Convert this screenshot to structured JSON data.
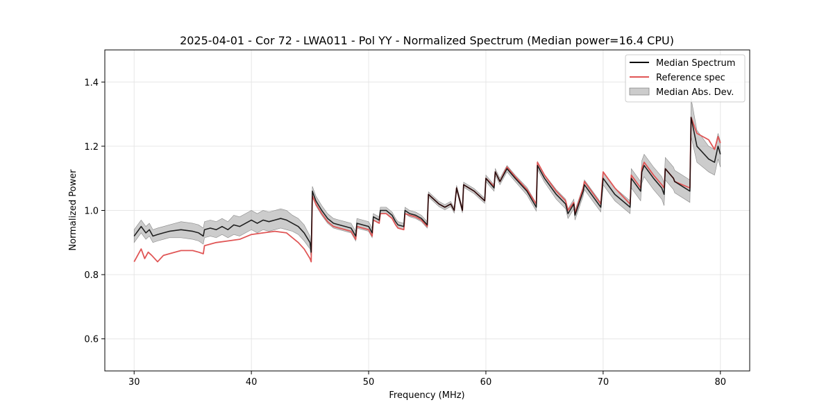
{
  "chart_data": {
    "type": "line",
    "title": "2025-04-01 - Cor 72 - LWA011 - Pol YY - Normalized Spectrum (Median power=16.4 CPU)",
    "xlabel": "Frequency (MHz)",
    "ylabel": "Normalized Power",
    "xlim": [
      27.5,
      82.5
    ],
    "ylim": [
      0.5,
      1.5
    ],
    "xticks": [
      30,
      40,
      50,
      60,
      70,
      80
    ],
    "yticks": [
      0.6,
      0.8,
      1.0,
      1.2,
      1.4
    ],
    "xtick_labels": [
      "30",
      "40",
      "50",
      "60",
      "70",
      "80"
    ],
    "ytick_labels": [
      "0.6",
      "0.8",
      "1.0",
      "1.2",
      "1.4"
    ],
    "grid": true,
    "legend_position": "top-right",
    "colors": {
      "median": "#000000",
      "reference": "#e05555",
      "mad_fill": "#999999"
    },
    "legend": [
      {
        "name": "Median Spectrum",
        "kind": "line",
        "color": "#000000"
      },
      {
        "name": "Reference spec",
        "kind": "line",
        "color": "#e05555"
      },
      {
        "name": "Median Abs. Dev.",
        "kind": "band",
        "color": "#999999"
      }
    ],
    "series": [
      {
        "name": "Median Spectrum",
        "x": [
          30.0,
          30.3,
          30.6,
          31.0,
          31.3,
          31.6,
          32.0,
          32.5,
          33.0,
          34.0,
          35.0,
          35.5,
          35.9,
          36.0,
          36.5,
          37.0,
          37.5,
          38.0,
          38.5,
          39.0,
          39.5,
          40.0,
          40.5,
          41.0,
          41.5,
          42.0,
          42.5,
          43.0,
          43.5,
          44.0,
          44.5,
          45.0,
          45.1,
          45.2,
          45.5,
          46.0,
          46.5,
          47.0,
          47.5,
          48.0,
          48.5,
          48.9,
          49.0,
          49.5,
          50.0,
          50.3,
          50.4,
          50.9,
          51.0,
          51.5,
          52.0,
          52.3,
          52.5,
          53.0,
          53.1,
          53.5,
          54.0,
          54.5,
          55.0,
          55.1,
          56.0,
          56.5,
          57.0,
          57.3,
          57.5,
          58.0,
          58.1,
          59.0,
          59.9,
          60.0,
          60.7,
          60.8,
          61.2,
          61.8,
          62.5,
          63.5,
          64.3,
          64.4,
          65.0,
          66.0,
          66.8,
          67.0,
          67.5,
          67.6,
          68.3,
          68.4,
          69.8,
          70.0,
          71.0,
          72.3,
          72.4,
          73.2,
          73.3,
          73.5,
          74.3,
          75.0,
          75.2,
          75.3,
          76.0,
          76.1,
          77.4,
          77.5,
          78.0,
          79.0,
          79.5,
          79.8,
          80.0
        ],
        "values": [
          0.92,
          0.935,
          0.95,
          0.93,
          0.94,
          0.92,
          0.925,
          0.93,
          0.935,
          0.94,
          0.935,
          0.93,
          0.92,
          0.94,
          0.945,
          0.94,
          0.95,
          0.94,
          0.955,
          0.95,
          0.96,
          0.97,
          0.96,
          0.97,
          0.965,
          0.97,
          0.975,
          0.97,
          0.96,
          0.95,
          0.93,
          0.9,
          0.87,
          1.06,
          1.03,
          1.0,
          0.975,
          0.96,
          0.955,
          0.95,
          0.945,
          0.92,
          0.96,
          0.955,
          0.95,
          0.93,
          0.98,
          0.97,
          1.0,
          1.0,
          0.985,
          0.965,
          0.955,
          0.95,
          1.0,
          0.99,
          0.985,
          0.975,
          0.955,
          1.05,
          1.02,
          1.01,
          1.02,
          1.0,
          1.07,
          1.0,
          1.08,
          1.06,
          1.03,
          1.1,
          1.07,
          1.12,
          1.09,
          1.13,
          1.1,
          1.06,
          1.01,
          1.14,
          1.1,
          1.05,
          1.02,
          0.99,
          1.02,
          0.985,
          1.06,
          1.08,
          1.01,
          1.1,
          1.05,
          1.01,
          1.1,
          1.06,
          1.12,
          1.14,
          1.1,
          1.07,
          1.05,
          1.13,
          1.1,
          1.09,
          1.06,
          1.29,
          1.2,
          1.16,
          1.15,
          1.2,
          1.175
        ],
        "mad": [
          0.02,
          0.02,
          0.02,
          0.02,
          0.02,
          0.02,
          0.02,
          0.02,
          0.02,
          0.025,
          0.025,
          0.025,
          0.025,
          0.025,
          0.025,
          0.025,
          0.025,
          0.025,
          0.03,
          0.03,
          0.03,
          0.03,
          0.03,
          0.03,
          0.03,
          0.03,
          0.03,
          0.03,
          0.025,
          0.025,
          0.025,
          0.02,
          0.02,
          0.015,
          0.015,
          0.015,
          0.015,
          0.015,
          0.015,
          0.015,
          0.015,
          0.015,
          0.015,
          0.015,
          0.015,
          0.015,
          0.01,
          0.01,
          0.01,
          0.01,
          0.01,
          0.01,
          0.01,
          0.01,
          0.01,
          0.01,
          0.01,
          0.01,
          0.01,
          0.008,
          0.008,
          0.008,
          0.008,
          0.008,
          0.008,
          0.008,
          0.008,
          0.008,
          0.008,
          0.01,
          0.01,
          0.01,
          0.01,
          0.01,
          0.01,
          0.012,
          0.012,
          0.012,
          0.012,
          0.015,
          0.015,
          0.015,
          0.015,
          0.015,
          0.015,
          0.015,
          0.015,
          0.02,
          0.02,
          0.02,
          0.03,
          0.03,
          0.035,
          0.035,
          0.035,
          0.035,
          0.035,
          0.035,
          0.035,
          0.035,
          0.035,
          0.06,
          0.05,
          0.04,
          0.04,
          0.04,
          0.04
        ]
      },
      {
        "name": "Reference spec",
        "x": [
          30.0,
          30.3,
          30.6,
          30.9,
          31.2,
          31.5,
          32.0,
          32.5,
          33.0,
          34.0,
          35.0,
          35.5,
          35.9,
          36.0,
          37.0,
          38.0,
          39.0,
          40.0,
          41.0,
          42.0,
          43.0,
          44.0,
          44.5,
          45.0,
          45.1,
          45.2,
          45.5,
          46.0,
          46.5,
          47.0,
          47.5,
          48.0,
          48.5,
          48.9,
          49.0,
          49.5,
          50.0,
          50.3,
          50.4,
          50.9,
          51.0,
          51.5,
          52.0,
          52.3,
          52.5,
          53.0,
          53.1,
          53.5,
          54.0,
          54.5,
          55.0,
          55.1,
          56.0,
          56.5,
          57.0,
          57.3,
          57.5,
          58.0,
          58.1,
          59.0,
          59.9,
          60.0,
          60.7,
          60.8,
          61.2,
          61.8,
          62.5,
          63.5,
          64.3,
          64.4,
          65.0,
          66.0,
          66.8,
          67.0,
          67.5,
          67.6,
          68.3,
          68.4,
          69.8,
          70.0,
          71.0,
          72.3,
          72.4,
          73.2,
          73.3,
          73.5,
          74.3,
          75.0,
          75.2,
          75.3,
          76.0,
          76.1,
          77.4,
          77.5,
          78.0,
          79.0,
          79.5,
          79.8,
          80.0
        ],
        "values": [
          0.84,
          0.86,
          0.88,
          0.85,
          0.87,
          0.86,
          0.84,
          0.86,
          0.865,
          0.875,
          0.875,
          0.87,
          0.865,
          0.89,
          0.9,
          0.905,
          0.91,
          0.925,
          0.93,
          0.935,
          0.93,
          0.9,
          0.88,
          0.85,
          0.84,
          1.045,
          1.02,
          0.99,
          0.965,
          0.95,
          0.945,
          0.94,
          0.935,
          0.91,
          0.95,
          0.945,
          0.94,
          0.92,
          0.97,
          0.96,
          0.99,
          0.99,
          0.975,
          0.955,
          0.945,
          0.94,
          0.99,
          0.985,
          0.98,
          0.97,
          0.95,
          1.05,
          1.02,
          1.01,
          1.02,
          1.0,
          1.07,
          1.0,
          1.08,
          1.06,
          1.03,
          1.1,
          1.075,
          1.12,
          1.09,
          1.135,
          1.105,
          1.065,
          1.02,
          1.15,
          1.11,
          1.06,
          1.03,
          1.0,
          1.025,
          0.99,
          1.07,
          1.09,
          1.02,
          1.12,
          1.07,
          1.02,
          1.11,
          1.07,
          1.13,
          1.15,
          1.11,
          1.08,
          1.07,
          1.13,
          1.1,
          1.09,
          1.07,
          1.29,
          1.24,
          1.22,
          1.19,
          1.23,
          1.21
        ]
      }
    ]
  }
}
